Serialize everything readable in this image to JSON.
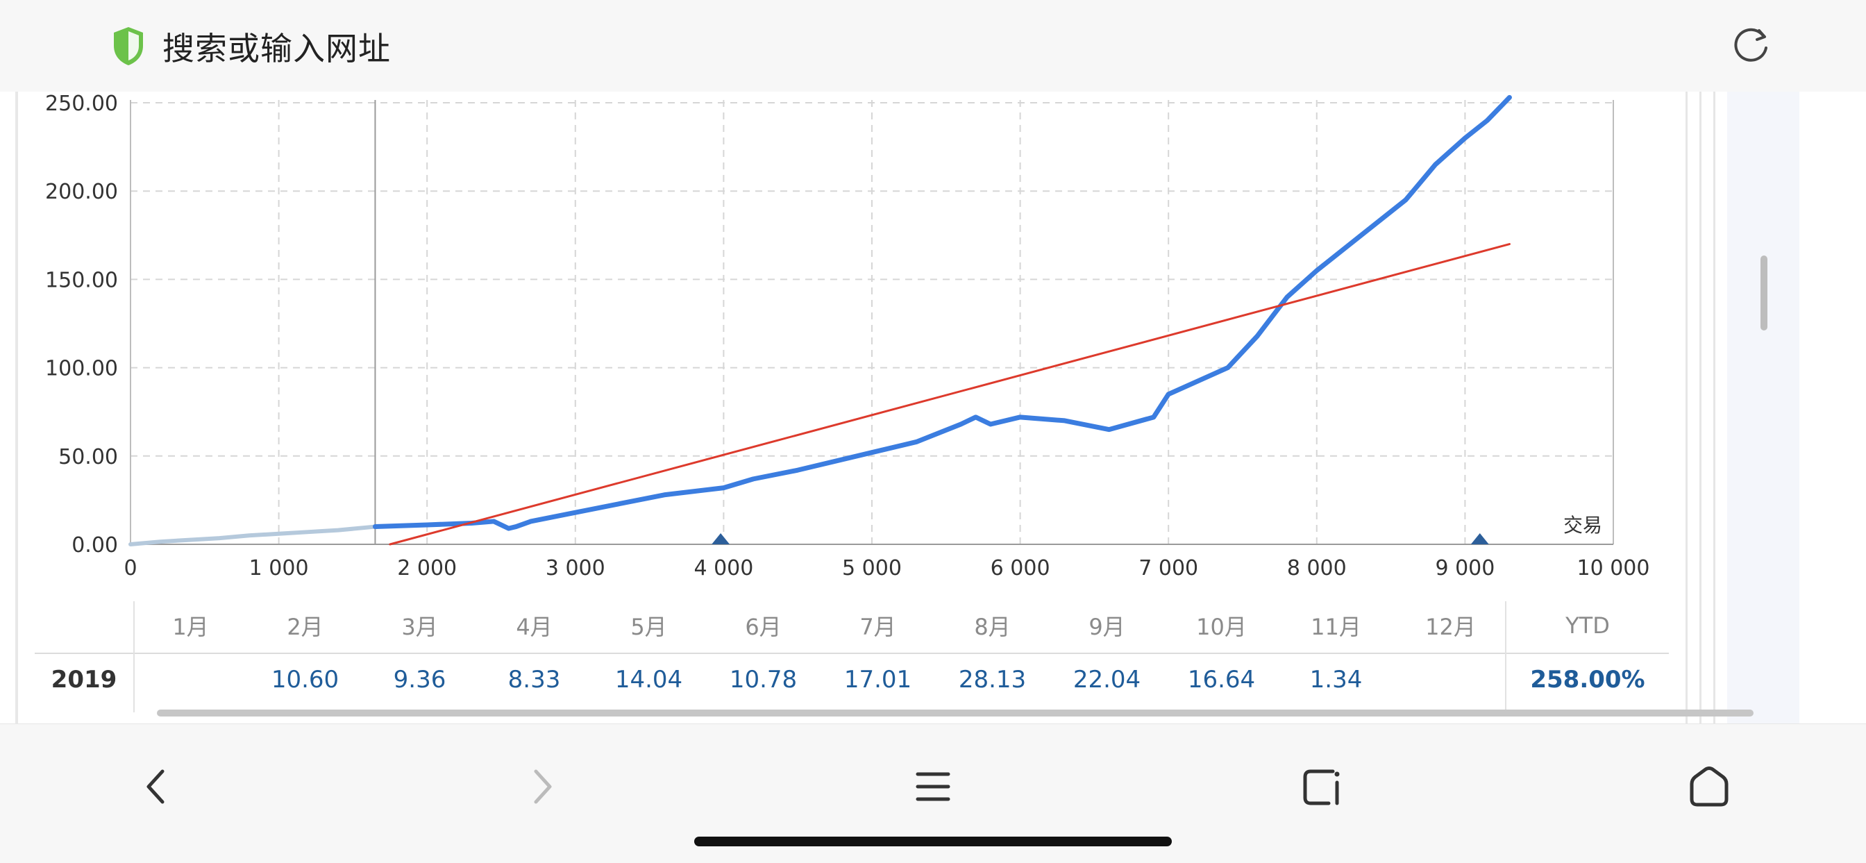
{
  "address_bar": {
    "text": "搜索或输入网址",
    "shield_icon": "shield-check-icon",
    "reload_icon": "reload-icon"
  },
  "chart_data": {
    "type": "line",
    "x_ticks": [
      "0",
      "1 000",
      "2 000",
      "3 000",
      "4 000",
      "5 000",
      "6 000",
      "7 000",
      "8 000",
      "9 000",
      "10 000"
    ],
    "y_ticks": [
      "0.00",
      "50.00",
      "100.00",
      "150.00",
      "200.00",
      "250.00"
    ],
    "xlim": [
      0,
      10000
    ],
    "ylim": [
      0,
      250
    ],
    "corner_label": "交易",
    "grid": true,
    "divider_x": 1650,
    "markers_x": [
      3980,
      9100
    ],
    "series": [
      {
        "color": "#b5c9dc",
        "x": [
          0,
          200,
          400,
          600,
          800,
          1000,
          1200,
          1400,
          1650
        ],
        "y": [
          0,
          1.5,
          2.5,
          3.5,
          5,
          6,
          7,
          8,
          10
        ]
      },
      {
        "color": "#3b7de0",
        "x": [
          1650,
          2000,
          2300,
          2450,
          2550,
          2600,
          2700,
          3000,
          3300,
          3600,
          4000,
          4200,
          4500,
          5000,
          5300,
          5600,
          5700,
          5800,
          6000,
          6300,
          6600,
          6900,
          7000,
          7400,
          7600,
          7800,
          8000,
          8300,
          8600,
          8800,
          9000,
          9150,
          9300
        ],
        "y": [
          10,
          11,
          12,
          13,
          9,
          10,
          13,
          18,
          23,
          28,
          32,
          37,
          42,
          52,
          58,
          68,
          72,
          68,
          72,
          70,
          65,
          72,
          85,
          100,
          118,
          140,
          155,
          175,
          195,
          215,
          230,
          240,
          253
        ]
      },
      {
        "color": "#dd3a2c",
        "x": [
          1750,
          9300
        ],
        "y": [
          0,
          170
        ]
      }
    ]
  },
  "monthly_table": {
    "months": [
      "1月",
      "2月",
      "3月",
      "4月",
      "5月",
      "6月",
      "7月",
      "8月",
      "9月",
      "10月",
      "11月",
      "12月"
    ],
    "ytd_header": "YTD",
    "year": "2019",
    "values": [
      "",
      "10.60",
      "9.36",
      "8.33",
      "14.04",
      "10.78",
      "17.01",
      "28.13",
      "22.04",
      "16.64",
      "1.34",
      ""
    ],
    "ytd_value": "258.00%"
  },
  "bottom_nav": {
    "back_icon": "chevron-left-icon",
    "forward_icon": "chevron-right-icon",
    "menu_icon": "menu-icon",
    "tabs_icon": "tabs-icon",
    "home_icon": "home-icon"
  }
}
